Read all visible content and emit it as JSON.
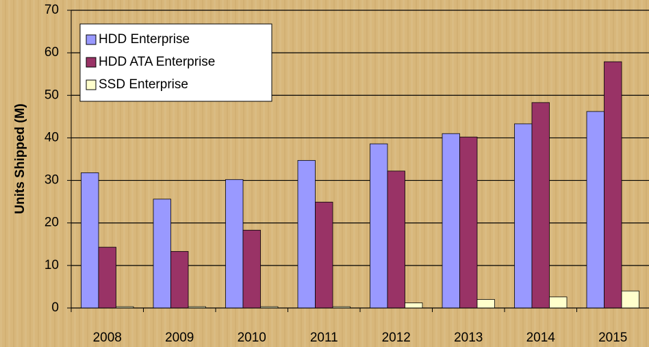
{
  "chart_data": {
    "type": "bar",
    "y_label": "Units Shipped (M)",
    "categories": [
      "2008",
      "2009",
      "2010",
      "2011",
      "2012",
      "2013",
      "2014",
      "2015"
    ],
    "series": [
      {
        "name": "HDD Enterprise",
        "color": "#9999ff",
        "values": [
          31.8,
          25.6,
          30.2,
          34.7,
          38.6,
          41,
          43.3,
          46.2
        ]
      },
      {
        "name": "HDD ATA Enterprise",
        "color": "#993366",
        "values": [
          14.3,
          13.3,
          18.3,
          24.9,
          32.2,
          40.2,
          48.3,
          57.9
        ]
      },
      {
        "name": "SSD Enterprise",
        "color": "#ffffcc",
        "values": [
          0.3,
          0.3,
          0.3,
          0.3,
          1.2,
          2,
          2.6,
          4
        ]
      }
    ],
    "ylim": [
      0,
      70
    ],
    "yticks": [
      0,
      10,
      20,
      30,
      40,
      50,
      60,
      70
    ],
    "grid": true,
    "legend": "top-left"
  }
}
